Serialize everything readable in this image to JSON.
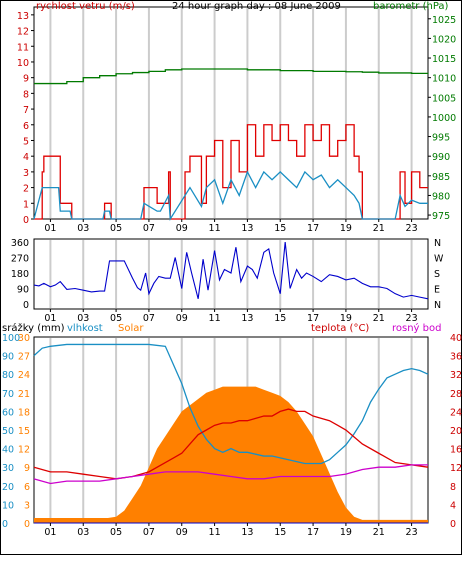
{
  "title": "24 hour graph day : 08 June 2009",
  "colors": {
    "wind_gust": "#e00000",
    "wind_avg": "#1a8fc4",
    "barometer": "#007a00",
    "direction": "#0000cc",
    "humidity": "#1a8fc4",
    "solar": "#ff8000",
    "temperature": "#dd0000",
    "dewpoint": "#cc00cc",
    "rain": "#0000cc",
    "grid_vertical": "#cccccc",
    "axis_text_left": "#cc0000",
    "axis_text_right": "#007a00"
  },
  "chart_data": [
    {
      "type": "line",
      "panel": "wind_pressure",
      "title": "24 hour graph day : 08 June 2009",
      "left_axis_label": "rychlost vetru (m/s)",
      "right_axis_label": "barometr (hPa)",
      "x_ticks": [
        "01",
        "03",
        "05",
        "07",
        "09",
        "11",
        "13",
        "15",
        "17",
        "19",
        "21",
        "23"
      ],
      "x_range": [
        0,
        24
      ],
      "y_left_ticks": [
        "0",
        "1",
        "2",
        "3",
        "4",
        "5",
        "6",
        "7",
        "8",
        "9",
        "10",
        "11",
        "12",
        "13"
      ],
      "y_left_range": [
        0,
        13.5
      ],
      "y_right_ticks": [
        "975",
        "980",
        "985",
        "990",
        "995",
        "1000",
        "1005",
        "1010",
        "1015",
        "1020",
        "1025"
      ],
      "y_right_range": [
        974,
        1028
      ],
      "series": [
        {
          "key": "barometer",
          "x": [
            0,
            2,
            3,
            4,
            5,
            6,
            7,
            8,
            9,
            10,
            11,
            12,
            13,
            14,
            15,
            16,
            17,
            18,
            19,
            20,
            21,
            22,
            23,
            24
          ],
          "y": [
            1008.5,
            1009,
            1010,
            1010.5,
            1011,
            1011.3,
            1011.6,
            1012,
            1012.2,
            1012.2,
            1012.2,
            1012.2,
            1012,
            1012,
            1011.8,
            1011.8,
            1011.6,
            1011.6,
            1011.5,
            1011.4,
            1011.2,
            1011.2,
            1011.1,
            1011
          ]
        },
        {
          "key": "wind_gust",
          "x": [
            0,
            0.5,
            0.6,
            1.5,
            1.6,
            2.2,
            2.3,
            4.2,
            4.3,
            4.6,
            4.7,
            6.5,
            6.7,
            7.5,
            7.7,
            8.2,
            8.3,
            9.2,
            9.5,
            10.2,
            10.5,
            11,
            11.5,
            12,
            12.5,
            13,
            13.5,
            14,
            14.5,
            15,
            15.5,
            16,
            16.5,
            17,
            17.5,
            18,
            18.5,
            19,
            19.5,
            19.8,
            20,
            21.5,
            22,
            22.3,
            22.6,
            23,
            23.5,
            24
          ],
          "y": [
            0,
            3,
            4,
            4,
            1,
            1,
            0,
            0,
            1,
            1,
            0,
            0,
            2,
            1,
            1,
            3,
            0,
            3,
            4,
            1,
            4,
            5,
            2,
            5,
            3,
            6,
            4,
            6,
            5,
            6,
            5,
            4,
            6,
            5,
            6,
            4,
            5,
            6,
            4,
            3,
            0,
            0,
            0,
            3,
            1,
            3,
            2,
            2
          ]
        },
        {
          "key": "wind_avg",
          "x": [
            0,
            0.5,
            0.6,
            1.5,
            1.6,
            2.2,
            2.3,
            4.2,
            4.3,
            4.6,
            4.7,
            6.5,
            6.7,
            7.5,
            7.7,
            8.2,
            8.3,
            9.2,
            9.5,
            10.2,
            10.5,
            11,
            11.5,
            12,
            12.5,
            13,
            13.5,
            14,
            14.5,
            15,
            15.5,
            16,
            16.5,
            17,
            17.5,
            18,
            18.5,
            19,
            19.5,
            19.8,
            20,
            21.5,
            22,
            22.3,
            22.6,
            23,
            23.5,
            24
          ],
          "y": [
            0,
            2,
            2,
            2,
            0.5,
            0.5,
            0,
            0,
            0.5,
            0.5,
            0,
            0,
            1,
            0.5,
            0.5,
            1.5,
            0,
            1.5,
            2,
            0.8,
            2,
            2.5,
            1,
            2.5,
            1.5,
            3,
            2,
            3,
            2.5,
            3,
            2.5,
            2,
            3,
            2.5,
            2.8,
            2,
            2.5,
            2,
            1.5,
            1,
            0,
            0,
            0,
            1.5,
            0.8,
            1.2,
            1,
            1
          ]
        }
      ]
    },
    {
      "type": "line",
      "panel": "wind_direction",
      "y_left_ticks": [
        "0",
        "90",
        "180",
        "270",
        "360"
      ],
      "y_right_ticks": [
        "N",
        "E",
        "S",
        "W",
        "N"
      ],
      "y_range": [
        0,
        360
      ],
      "series": [
        {
          "key": "direction",
          "x": [
            0,
            0.3,
            0.6,
            1,
            1.3,
            1.6,
            2,
            2.5,
            3,
            3.5,
            4,
            4.3,
            4.6,
            5,
            5.5,
            6,
            6.3,
            6.5,
            6.8,
            7,
            7.3,
            7.6,
            8,
            8.3,
            8.6,
            9,
            9.3,
            9.6,
            10,
            10.3,
            10.6,
            11,
            11.3,
            11.6,
            12,
            12.3,
            12.6,
            13,
            13.3,
            13.6,
            14,
            14.3,
            14.6,
            15,
            15.3,
            15.6,
            16,
            16.3,
            16.6,
            17,
            17.5,
            18,
            18.5,
            19,
            19.5,
            20,
            20.5,
            21,
            21.5,
            22,
            22.5,
            23,
            23.5,
            24
          ],
          "y": [
            110,
            105,
            120,
            100,
            110,
            130,
            85,
            90,
            80,
            70,
            75,
            75,
            250,
            250,
            250,
            150,
            95,
            80,
            180,
            60,
            120,
            160,
            150,
            150,
            270,
            90,
            300,
            180,
            30,
            260,
            80,
            310,
            140,
            200,
            180,
            330,
            130,
            220,
            200,
            150,
            300,
            320,
            180,
            60,
            360,
            90,
            200,
            150,
            180,
            160,
            130,
            170,
            160,
            140,
            150,
            120,
            100,
            100,
            90,
            60,
            40,
            50,
            40,
            30
          ]
        }
      ]
    },
    {
      "type": "line",
      "panel": "humidity_solar_temp",
      "legend": [
        "srážky (mm)",
        "vlhkost",
        "Solar",
        "teplota (°C)",
        "rosný bod"
      ],
      "y_left_ticks": [
        "0",
        "10",
        "20",
        "30",
        "40",
        "50",
        "60",
        "70",
        "80",
        "90",
        "100"
      ],
      "y_left_ticks_solar": [
        "0",
        "3",
        "6",
        "9",
        "12",
        "15",
        "18",
        "21",
        "24",
        "27",
        "30"
      ],
      "y_right_ticks": [
        "0",
        "4",
        "8",
        "12",
        "16",
        "20",
        "24",
        "28",
        "32",
        "36",
        "40"
      ],
      "y_left_range": [
        0,
        100
      ],
      "y_right_range": [
        0,
        40
      ],
      "series": [
        {
          "key": "humidity",
          "x": [
            0,
            0.5,
            1,
            2,
            3,
            4,
            5,
            6,
            7,
            8,
            8.5,
            9,
            9.5,
            10,
            10.5,
            11,
            11.5,
            12,
            12.5,
            13,
            13.5,
            14,
            14.5,
            15,
            15.5,
            16,
            16.5,
            17,
            17.5,
            18,
            18.5,
            19,
            19.5,
            20,
            20.5,
            21,
            21.5,
            22,
            22.5,
            23,
            23.5,
            24
          ],
          "y": [
            90,
            94,
            95,
            96,
            96,
            96,
            96,
            96,
            96,
            95,
            85,
            75,
            62,
            52,
            45,
            40,
            38,
            40,
            38,
            38,
            37,
            36,
            36,
            35,
            34,
            33,
            32,
            32,
            32,
            34,
            38,
            42,
            48,
            55,
            65,
            72,
            78,
            80,
            82,
            83,
            82,
            80
          ]
        },
        {
          "key": "solar",
          "x": [
            0,
            4.5,
            5,
            5.5,
            6,
            6.5,
            7,
            7.5,
            8,
            8.5,
            9,
            9.5,
            10,
            10.5,
            11,
            11.5,
            12,
            12.5,
            13,
            13.5,
            14,
            14.5,
            15,
            15.5,
            16,
            16.5,
            17,
            17.5,
            18,
            18.5,
            19,
            19.5,
            20,
            24
          ],
          "y": [
            0.8,
            0.8,
            1,
            2,
            4,
            6,
            9,
            12,
            14,
            16,
            18,
            19,
            20,
            21,
            21.5,
            22,
            22,
            22,
            22,
            22,
            21.5,
            21,
            20.5,
            19.5,
            18,
            16,
            14,
            11,
            8,
            5,
            2.5,
            1,
            0.5,
            0.5
          ]
        },
        {
          "key": "temperature",
          "x": [
            0,
            1,
            2,
            3,
            4,
            5,
            6,
            7,
            8,
            8.5,
            9,
            9.5,
            10,
            10.5,
            11,
            11.5,
            12,
            12.5,
            13,
            13.5,
            14,
            14.5,
            15,
            15.5,
            16,
            16.5,
            17,
            17.5,
            18,
            18.5,
            19,
            19.5,
            20,
            21,
            22,
            23,
            24
          ],
          "y": [
            12,
            11,
            11,
            10.5,
            10,
            9.5,
            10,
            11,
            13,
            14,
            15,
            17,
            19,
            20,
            21,
            21.5,
            21.5,
            22,
            22,
            22.5,
            23,
            23,
            24,
            24.5,
            24,
            24,
            23,
            22.5,
            22,
            21,
            20,
            18.5,
            17,
            15,
            13,
            12.5,
            12
          ]
        },
        {
          "key": "dewpoint",
          "x": [
            0,
            1,
            2,
            3,
            4,
            5,
            6,
            7,
            8,
            9,
            10,
            11,
            12,
            13,
            14,
            15,
            16,
            17,
            18,
            19,
            20,
            21,
            22,
            23,
            24
          ],
          "y": [
            9.5,
            8.5,
            9,
            9,
            9,
            9.5,
            10,
            10.5,
            11,
            11,
            11,
            10.5,
            10,
            9.5,
            9.5,
            10,
            10,
            10,
            10,
            10.5,
            11.5,
            12,
            12,
            12.5,
            12.5
          ]
        },
        {
          "key": "rain",
          "x": [
            0,
            24
          ],
          "y": [
            0,
            0
          ]
        }
      ]
    }
  ]
}
